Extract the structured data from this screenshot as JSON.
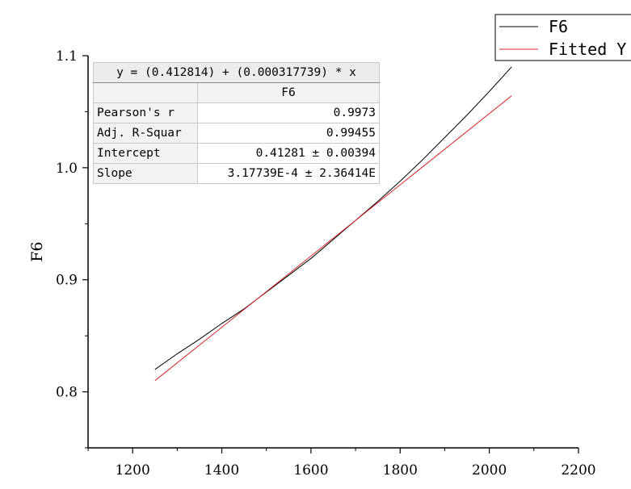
{
  "chart_data": {
    "type": "line",
    "title": "",
    "xlabel": "",
    "ylabel": "F6",
    "xlim": [
      1100,
      2200
    ],
    "ylim": [
      0.75,
      1.1
    ],
    "x_ticks": [
      1200,
      1400,
      1600,
      1800,
      2000,
      2200
    ],
    "x_tick_labels": [
      "1200",
      "1400",
      "1600",
      "1800",
      "2000",
      "2200"
    ],
    "y_ticks": [
      0.8,
      0.9,
      1.0,
      1.1
    ],
    "y_tick_labels": [
      "0.8",
      "0.9",
      "1.0",
      "1.1"
    ],
    "grid": false,
    "legend_position": "top-right",
    "series": [
      {
        "name": "F6",
        "color": "#000000",
        "x": [
          1250,
          1300,
          1350,
          1400,
          1450,
          1500,
          1550,
          1600,
          1650,
          1700,
          1750,
          1800,
          1850,
          1900,
          1950,
          2000,
          2050
        ],
        "y": [
          0.82,
          0.834,
          0.847,
          0.861,
          0.874,
          0.889,
          0.904,
          0.919,
          0.936,
          0.953,
          0.97,
          0.988,
          1.007,
          1.027,
          1.047,
          1.068,
          1.09
        ]
      },
      {
        "name": "Fitted Y",
        "color": "#d62728",
        "x": [
          1250,
          2050
        ],
        "y": [
          0.81,
          1.0642
        ]
      }
    ],
    "fit_table": {
      "equation": "y = (0.412814) + (0.000317739) * x",
      "column_header": "F6",
      "rows": [
        {
          "label": "Pearson's r",
          "value": "0.9973"
        },
        {
          "label": "Adj. R-Squar",
          "value": "0.99455"
        },
        {
          "label": "Intercept",
          "value": "0.41281 ± 0.00394"
        },
        {
          "label": "Slope",
          "value": "3.17739E-4 ± 2.36414E"
        }
      ]
    }
  }
}
